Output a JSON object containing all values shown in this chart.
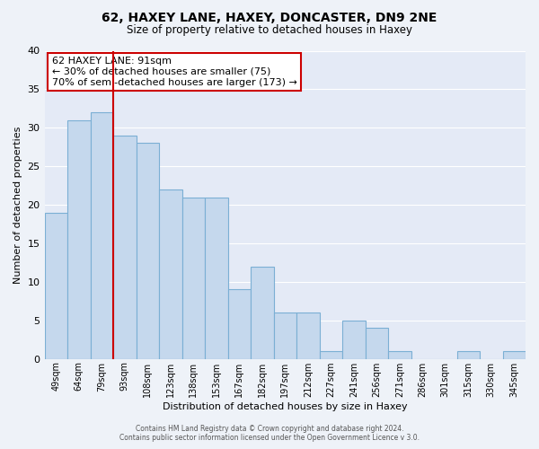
{
  "title": "62, HAXEY LANE, HAXEY, DONCASTER, DN9 2NE",
  "subtitle": "Size of property relative to detached houses in Haxey",
  "xlabel": "Distribution of detached houses by size in Haxey",
  "ylabel": "Number of detached properties",
  "footer_line1": "Contains HM Land Registry data © Crown copyright and database right 2024.",
  "footer_line2": "Contains public sector information licensed under the Open Government Licence v 3.0.",
  "annotation_line1": "62 HAXEY LANE: 91sqm",
  "annotation_line2": "← 30% of detached houses are smaller (75)",
  "annotation_line3": "70% of semi-detached houses are larger (173) →",
  "bin_labels": [
    "49sqm",
    "64sqm",
    "79sqm",
    "93sqm",
    "108sqm",
    "123sqm",
    "138sqm",
    "153sqm",
    "167sqm",
    "182sqm",
    "197sqm",
    "212sqm",
    "227sqm",
    "241sqm",
    "256sqm",
    "271sqm",
    "286sqm",
    "301sqm",
    "315sqm",
    "330sqm",
    "345sqm"
  ],
  "bar_values": [
    19,
    31,
    32,
    29,
    28,
    22,
    21,
    21,
    9,
    12,
    6,
    6,
    1,
    5,
    4,
    1,
    0,
    0,
    1,
    0,
    1
  ],
  "bar_color": "#c5d8ed",
  "bar_edge_color": "#7bafd4",
  "reference_line_x": 2.5,
  "reference_line_color": "#cc0000",
  "ylim": [
    0,
    40
  ],
  "yticks": [
    0,
    5,
    10,
    15,
    20,
    25,
    30,
    35,
    40
  ],
  "background_color": "#eef2f8",
  "plot_bg_color": "#e4eaf6",
  "grid_color": "#ffffff",
  "annotation_box_color": "#ffffff",
  "annotation_box_edge_color": "#cc0000"
}
